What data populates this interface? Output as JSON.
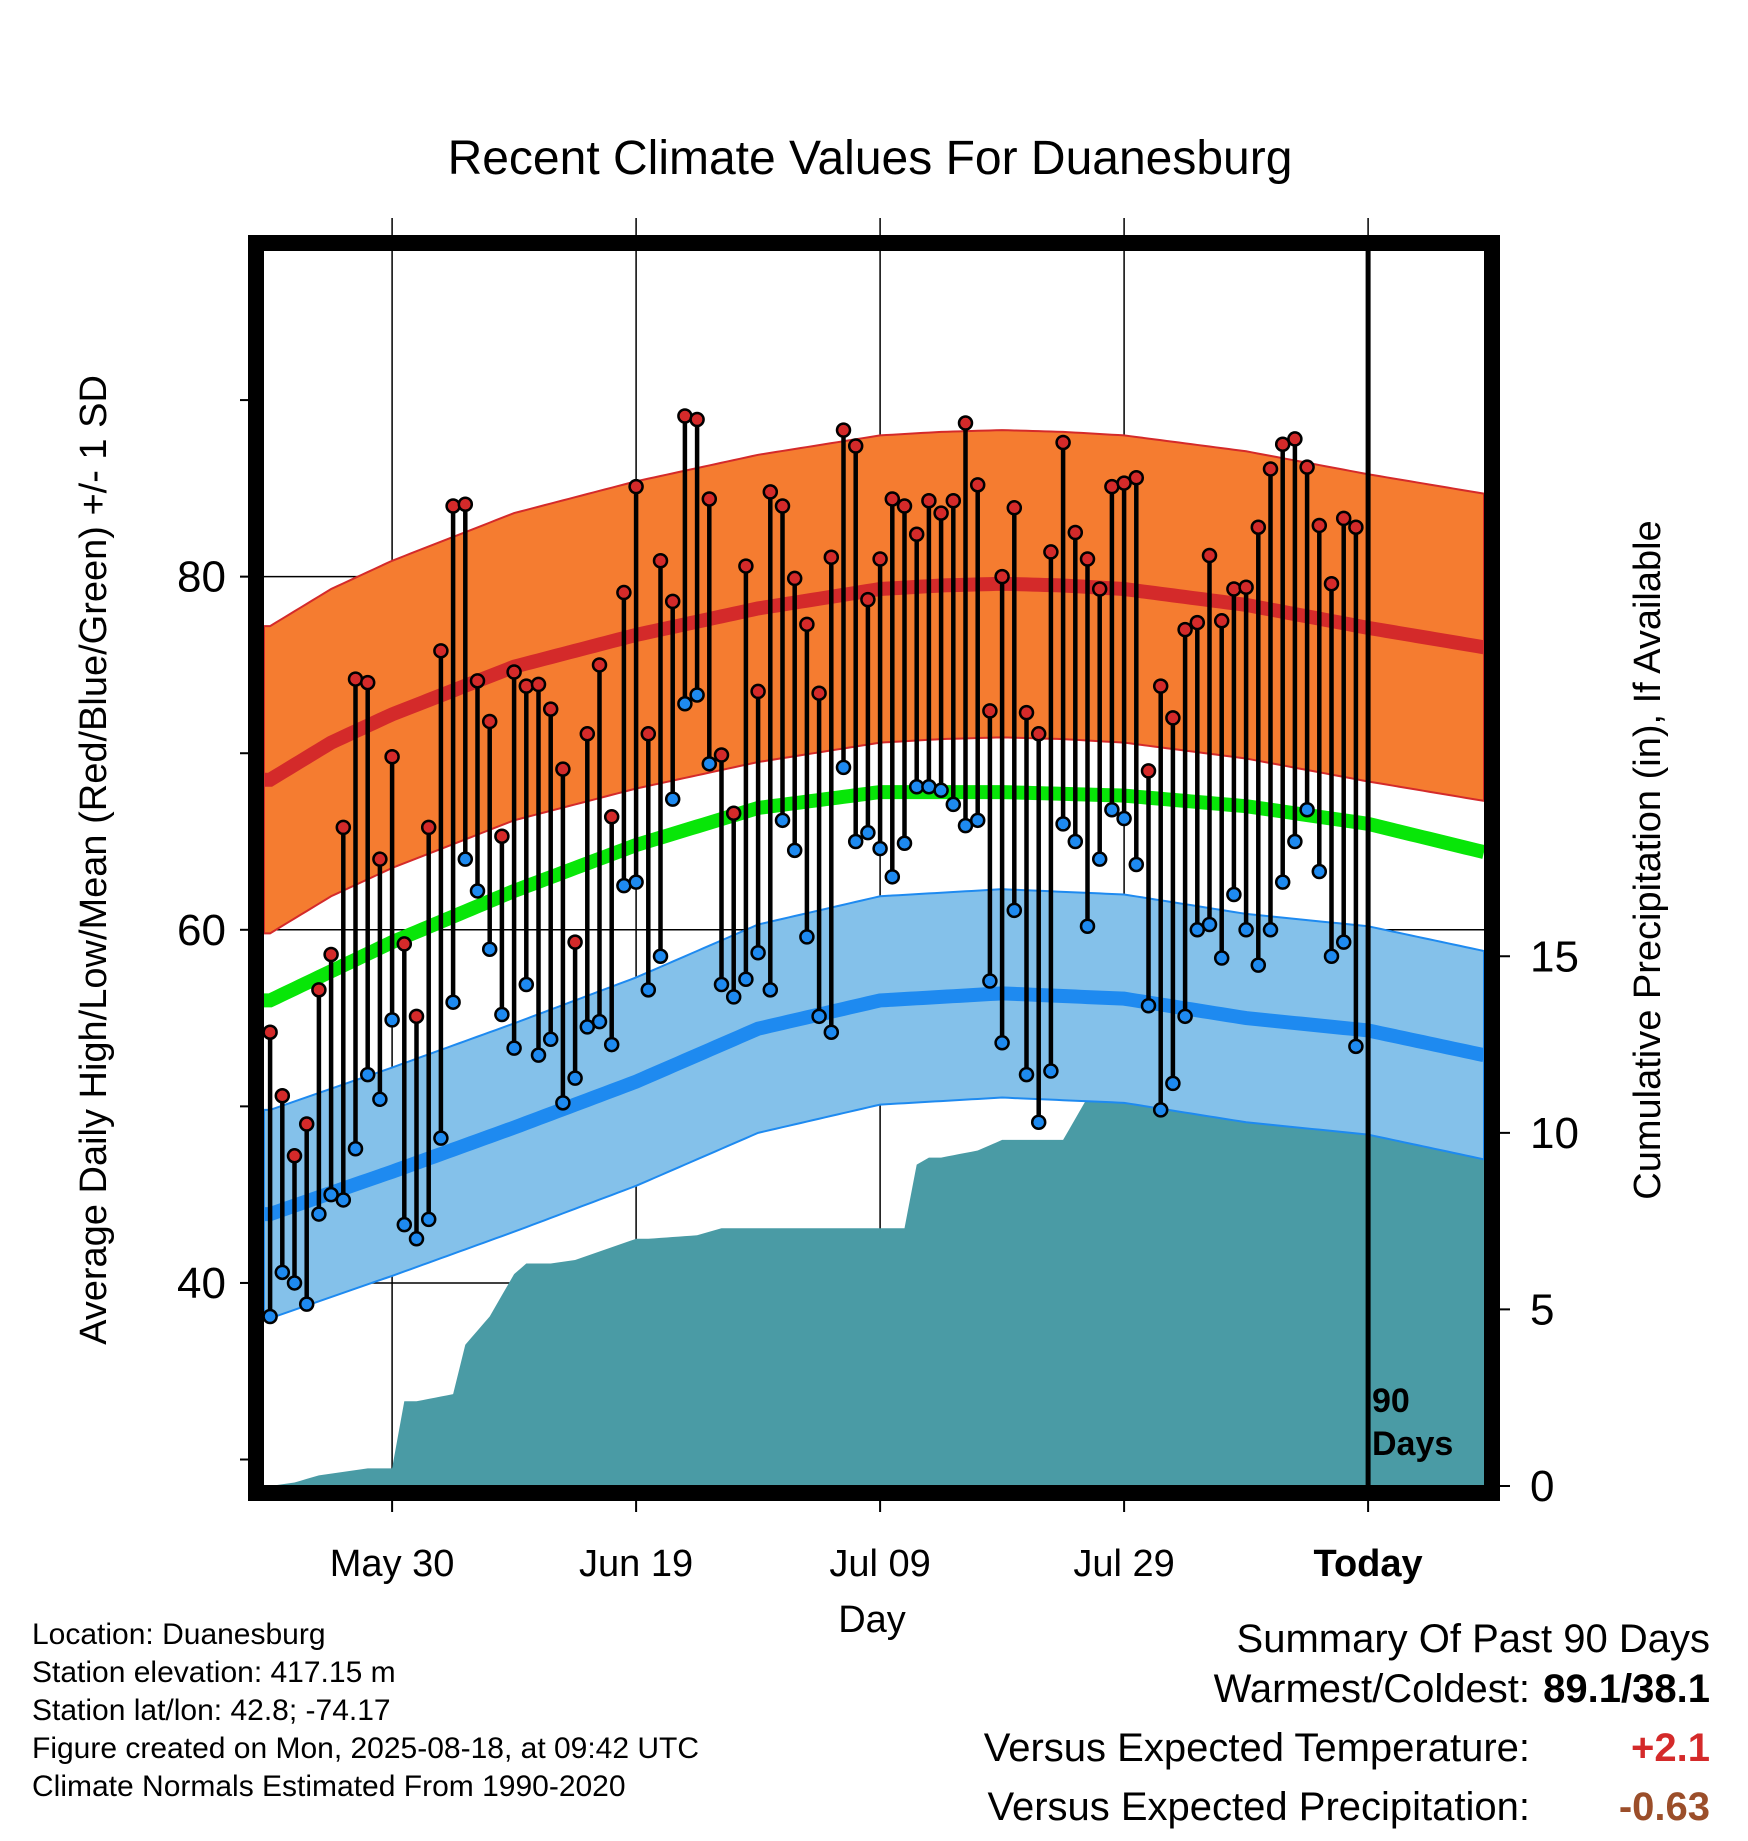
{
  "chart_data": {
    "type": "line",
    "title": "Recent Climate Values For Duanesburg",
    "xlabel": "Day",
    "ylabel_left": "Average Daily High/Low/Mean (Red/Blue/Green) +/- 1 SD",
    "ylabel_right": "Cumulative Precipitation (in), If Available",
    "x_ticks": [
      "May 30",
      "Jun 19",
      "Jul 09",
      "Jul 29",
      "Today"
    ],
    "x_tick_days": [
      30,
      50,
      70,
      90,
      110
    ],
    "xlim": [
      19.5,
      119.5
    ],
    "ylim_left": [
      28.5,
      98.5
    ],
    "yticks_left": [
      40,
      60,
      80
    ],
    "ylim_right": [
      0,
      35
    ],
    "yticks_right": [
      0,
      5,
      10,
      15
    ],
    "today_marker_label_1": "90",
    "today_marker_label_2": "Days",
    "grid": true,
    "daily": {
      "first_day": 20,
      "highs": [
        54.2,
        50.6,
        47.2,
        49.0,
        56.6,
        58.6,
        65.8,
        74.2,
        74.0,
        64.0,
        69.8,
        59.2,
        55.1,
        65.8,
        75.8,
        84.0,
        84.1,
        74.1,
        71.8,
        65.3,
        74.6,
        73.8,
        73.9,
        72.5,
        69.1,
        59.3,
        71.1,
        75.0,
        66.4,
        79.1,
        85.1,
        71.1,
        80.9,
        78.6,
        89.1,
        88.9,
        84.4,
        69.9,
        66.6,
        80.6,
        73.5,
        84.8,
        84.0,
        79.9,
        77.3,
        73.4,
        81.1,
        88.3,
        87.4,
        78.7,
        81.0,
        84.4,
        84.0,
        82.4,
        84.3,
        83.6,
        84.3,
        88.7,
        85.2,
        72.4,
        80.0,
        83.9,
        72.3,
        71.1,
        81.4,
        87.6,
        82.5,
        81.0,
        79.3,
        85.1,
        85.3,
        85.6,
        69.0,
        73.8,
        72.0,
        77.0,
        77.4,
        81.2,
        77.5,
        79.3,
        79.4,
        82.8,
        86.1,
        87.5,
        87.8,
        86.2,
        82.9,
        79.6,
        83.3,
        82.8
      ],
      "lows": [
        38.1,
        40.6,
        40.0,
        38.8,
        43.9,
        45.0,
        44.7,
        47.6,
        51.8,
        50.4,
        54.9,
        43.3,
        42.5,
        43.6,
        48.2,
        55.9,
        64.0,
        62.2,
        58.9,
        55.2,
        53.3,
        56.9,
        52.9,
        53.8,
        50.2,
        51.6,
        54.5,
        54.8,
        53.5,
        62.5,
        62.7,
        56.6,
        58.5,
        67.4,
        72.8,
        73.3,
        69.4,
        56.9,
        56.2,
        57.2,
        58.7,
        56.6,
        66.2,
        64.5,
        59.6,
        55.1,
        54.2,
        69.2,
        65.0,
        65.5,
        64.6,
        63.0,
        64.9,
        68.1,
        68.1,
        67.9,
        67.1,
        65.9,
        66.2,
        57.1,
        53.6,
        61.1,
        51.8,
        49.1,
        52.0,
        66.0,
        65.0,
        60.2,
        64.0,
        66.8,
        66.3,
        63.7,
        55.7,
        49.8,
        51.3,
        55.1,
        60.0,
        60.3,
        58.4,
        62.0,
        60.0,
        58.0,
        60.0,
        62.7,
        65.0,
        66.8,
        63.3,
        58.5,
        59.3,
        53.4
      ],
      "normal_high": {
        "days": [
          20,
          25,
          30,
          40,
          50,
          60,
          70,
          75,
          80,
          85,
          90,
          100,
          110,
          119.5
        ],
        "values": [
          68.5,
          70.6,
          72.2,
          74.9,
          76.7,
          78.2,
          79.3,
          79.5,
          79.6,
          79.5,
          79.3,
          78.4,
          77.1,
          76.0
        ]
      },
      "normal_high_sd": 8.7,
      "normal_low": {
        "days": [
          20,
          30,
          40,
          50,
          60,
          70,
          80,
          90,
          100,
          110,
          119.5
        ],
        "values": [
          43.9,
          46.3,
          48.8,
          51.4,
          54.4,
          56.0,
          56.4,
          56.1,
          55.0,
          54.3,
          52.9
        ]
      },
      "normal_low_sd": 5.9,
      "normal_mean": {
        "days": [
          20,
          30,
          40,
          50,
          60,
          70,
          80,
          90,
          100,
          110,
          119.5
        ],
        "values": [
          56.0,
          59.3,
          62.2,
          64.8,
          66.9,
          67.8,
          67.8,
          67.6,
          67.0,
          66.0,
          64.4
        ]
      },
      "precip_cumulative": {
        "days": [
          20,
          22,
          24,
          26,
          28,
          30,
          31,
          32,
          35,
          36,
          38,
          40,
          41,
          42,
          43,
          45,
          50,
          51,
          55,
          57,
          60,
          65,
          70,
          72,
          73,
          74,
          75,
          78,
          80,
          85,
          87,
          88,
          90,
          92,
          95,
          100,
          104,
          106,
          110,
          119.5
        ],
        "values": [
          0,
          0.1,
          0.3,
          0.4,
          0.5,
          0.5,
          2.4,
          2.4,
          2.6,
          4.0,
          4.8,
          6.0,
          6.3,
          6.3,
          6.3,
          6.4,
          7.0,
          7.0,
          7.1,
          7.3,
          7.3,
          7.3,
          7.3,
          7.3,
          9.1,
          9.3,
          9.3,
          9.5,
          9.8,
          9.8,
          11.0,
          11.0,
          11.5,
          11.5,
          12.1,
          12.1,
          12.1,
          12.8,
          12.8,
          12.8
        ]
      }
    },
    "colors": {
      "high_band": "#f57c30",
      "high_line": "#d42a2a",
      "low_band": "#84c1ea",
      "low_line": "#1e8af0",
      "mean_line": "#08e608",
      "precip": "#4a9ba5",
      "high_dot": "#d42a2a",
      "low_dot": "#1e8af0"
    }
  },
  "info": {
    "location": "Location: Duanesburg",
    "elevation": "Station elevation: 417.15 m",
    "latlon": "Station lat/lon: 42.8; -74.17",
    "created": "Figure created on Mon, 2025-08-18, at 09:42 UTC",
    "normals": "Climate Normals Estimated From 1990-2020"
  },
  "summary": {
    "title": "Summary Of Past 90 Days",
    "warm_cold_label": "Warmest/Coldest:",
    "warm_cold_value": "89.1/38.1",
    "temp_label": "Versus Expected Temperature:",
    "temp_value": "+2.1",
    "temp_color": "#d42a2a",
    "precip_label": "Versus Expected Precipitation:",
    "precip_value": "-0.63",
    "precip_color": "#9b4e2a"
  }
}
